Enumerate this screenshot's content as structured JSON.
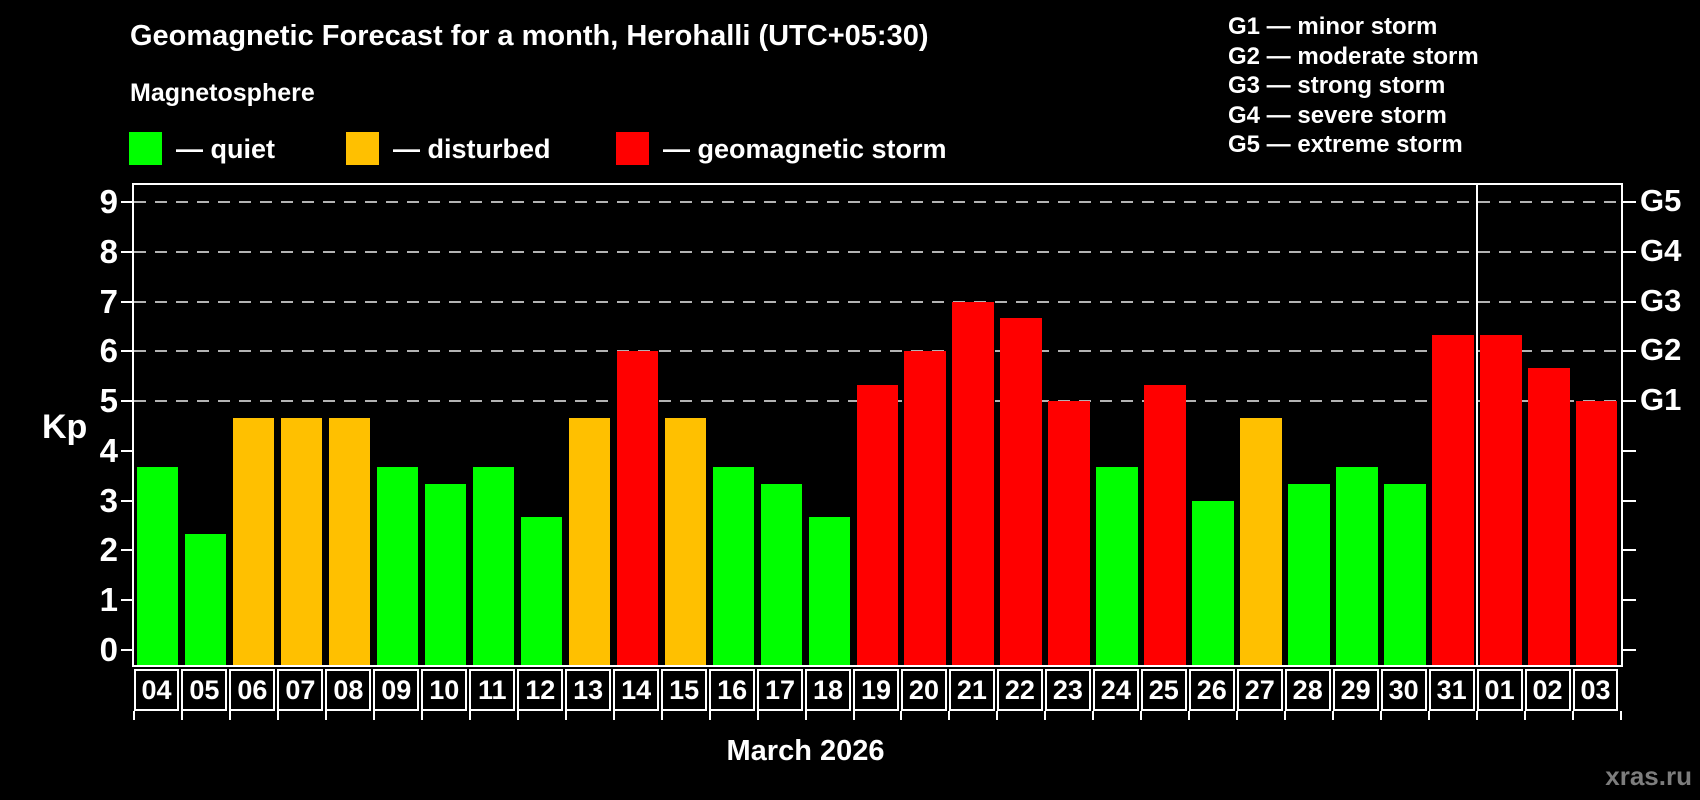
{
  "title": "Geomagnetic Forecast for a month, Herohalli (UTC+05:30)",
  "subtitle": "Magnetosphere",
  "legend": {
    "items": [
      {
        "label": "— quiet",
        "level": "quiet",
        "color": "#00ff00"
      },
      {
        "label": "— disturbed",
        "level": "disturbed",
        "color": "#ffc000"
      },
      {
        "label": "— geomagnetic storm",
        "level": "storm",
        "color": "#ff0000"
      }
    ]
  },
  "g_legend": {
    "items": [
      "G1 — minor storm",
      "G2 — moderate storm",
      "G3 — strong storm",
      "G4 — severe storm",
      "G5 — extreme storm"
    ]
  },
  "watermark": "xras.ru",
  "chart_data": {
    "type": "bar",
    "title": "Geomagnetic Forecast for a month, Herohalli (UTC+05:30)",
    "ylabel": "Kp",
    "xlabel": "March 2026",
    "ylim": [
      -0.3,
      9.65
    ],
    "yticks": [
      0,
      1,
      2,
      3,
      4,
      5,
      6,
      7,
      8,
      9
    ],
    "gridlines_at": [
      5,
      6,
      7,
      8,
      9
    ],
    "grid": "dashed",
    "right_axis_labels": [
      {
        "label": "G1",
        "kp": 5
      },
      {
        "label": "G2",
        "kp": 6
      },
      {
        "label": "G3",
        "kp": 7
      },
      {
        "label": "G4",
        "kp": 8
      },
      {
        "label": "G5",
        "kp": 9
      }
    ],
    "categories": [
      "04",
      "05",
      "06",
      "07",
      "08",
      "09",
      "10",
      "11",
      "12",
      "13",
      "14",
      "15",
      "16",
      "17",
      "18",
      "19",
      "20",
      "21",
      "22",
      "23",
      "24",
      "25",
      "26",
      "27",
      "28",
      "29",
      "30",
      "31",
      "01",
      "02",
      "03"
    ],
    "values": [
      3.67,
      2.33,
      4.67,
      4.67,
      4.67,
      3.67,
      3.33,
      3.67,
      2.67,
      4.67,
      6.0,
      4.67,
      3.67,
      3.33,
      2.67,
      5.33,
      6.0,
      7.0,
      6.67,
      5.0,
      3.67,
      5.33,
      3.0,
      4.67,
      3.33,
      3.67,
      3.33,
      6.33,
      6.33,
      5.67,
      5.0
    ],
    "levels": [
      "quiet",
      "quiet",
      "disturbed",
      "disturbed",
      "disturbed",
      "quiet",
      "quiet",
      "quiet",
      "quiet",
      "disturbed",
      "storm",
      "disturbed",
      "quiet",
      "quiet",
      "quiet",
      "storm",
      "storm",
      "storm",
      "storm",
      "storm",
      "quiet",
      "storm",
      "quiet",
      "disturbed",
      "quiet",
      "quiet",
      "quiet",
      "storm",
      "storm",
      "storm",
      "storm"
    ],
    "palette": {
      "quiet": "#00ff00",
      "disturbed": "#ffc000",
      "storm": "#ff0000"
    },
    "month_separator_after_index": 27,
    "legend_position": "top"
  }
}
